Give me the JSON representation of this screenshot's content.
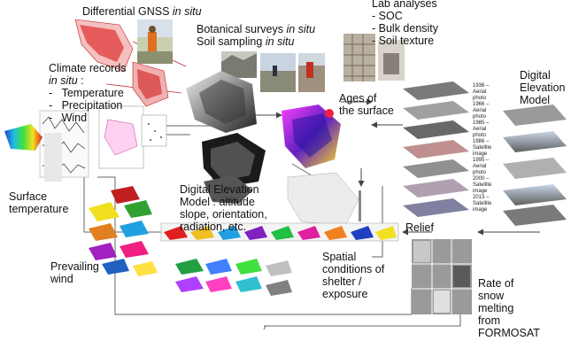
{
  "labels": {
    "gnss_main": "Differential GNSS ",
    "gnss_em": "in situ",
    "botanical_main": "Botanical surveys ",
    "botanical_em": "in situ",
    "soil_main": "Soil sampling ",
    "soil_em": "in situ",
    "lab_title": "Lab analyses",
    "lab_items": [
      "- SOC",
      "- Bulk density",
      "- Soil texture"
    ],
    "climate_title": "Climate records",
    "climate_sub": "in situ",
    "climate_colon": " :",
    "climate_items": [
      "Temperature",
      "Precipitation",
      "Wind"
    ],
    "bullet": "-",
    "ages_line1": "Ages of",
    "ages_line2": "the surface",
    "dem_right_lines": [
      "Digital",
      "Elevation",
      "Model"
    ],
    "surface_temp_lines": [
      "Surface",
      "temperature"
    ],
    "dem_center_lines": [
      "Digital Elevation",
      "Model : altitude",
      "slope, orientation,",
      "radiation, etc."
    ],
    "relief": "Relief",
    "wind_lines": [
      "Prevailing",
      "wind"
    ],
    "spatial_lines": [
      "Spatial",
      "conditions of",
      "shelter /",
      "exposure"
    ],
    "snow_lines": [
      "Rate of",
      "snow",
      "melting",
      "from",
      "FORMOSAT"
    ],
    "stack_dates": [
      "1936 –",
      "Aerial",
      "photo",
      "1966 –",
      "Aerial",
      "photo",
      "1985 –",
      "Aerial",
      "photo",
      "1986 –",
      "Satellite",
      "image",
      "1995 –",
      "Aerial",
      "photo",
      "2000 –",
      "Satellite",
      "image",
      "2013 –",
      "Satellite",
      "image"
    ]
  }
}
